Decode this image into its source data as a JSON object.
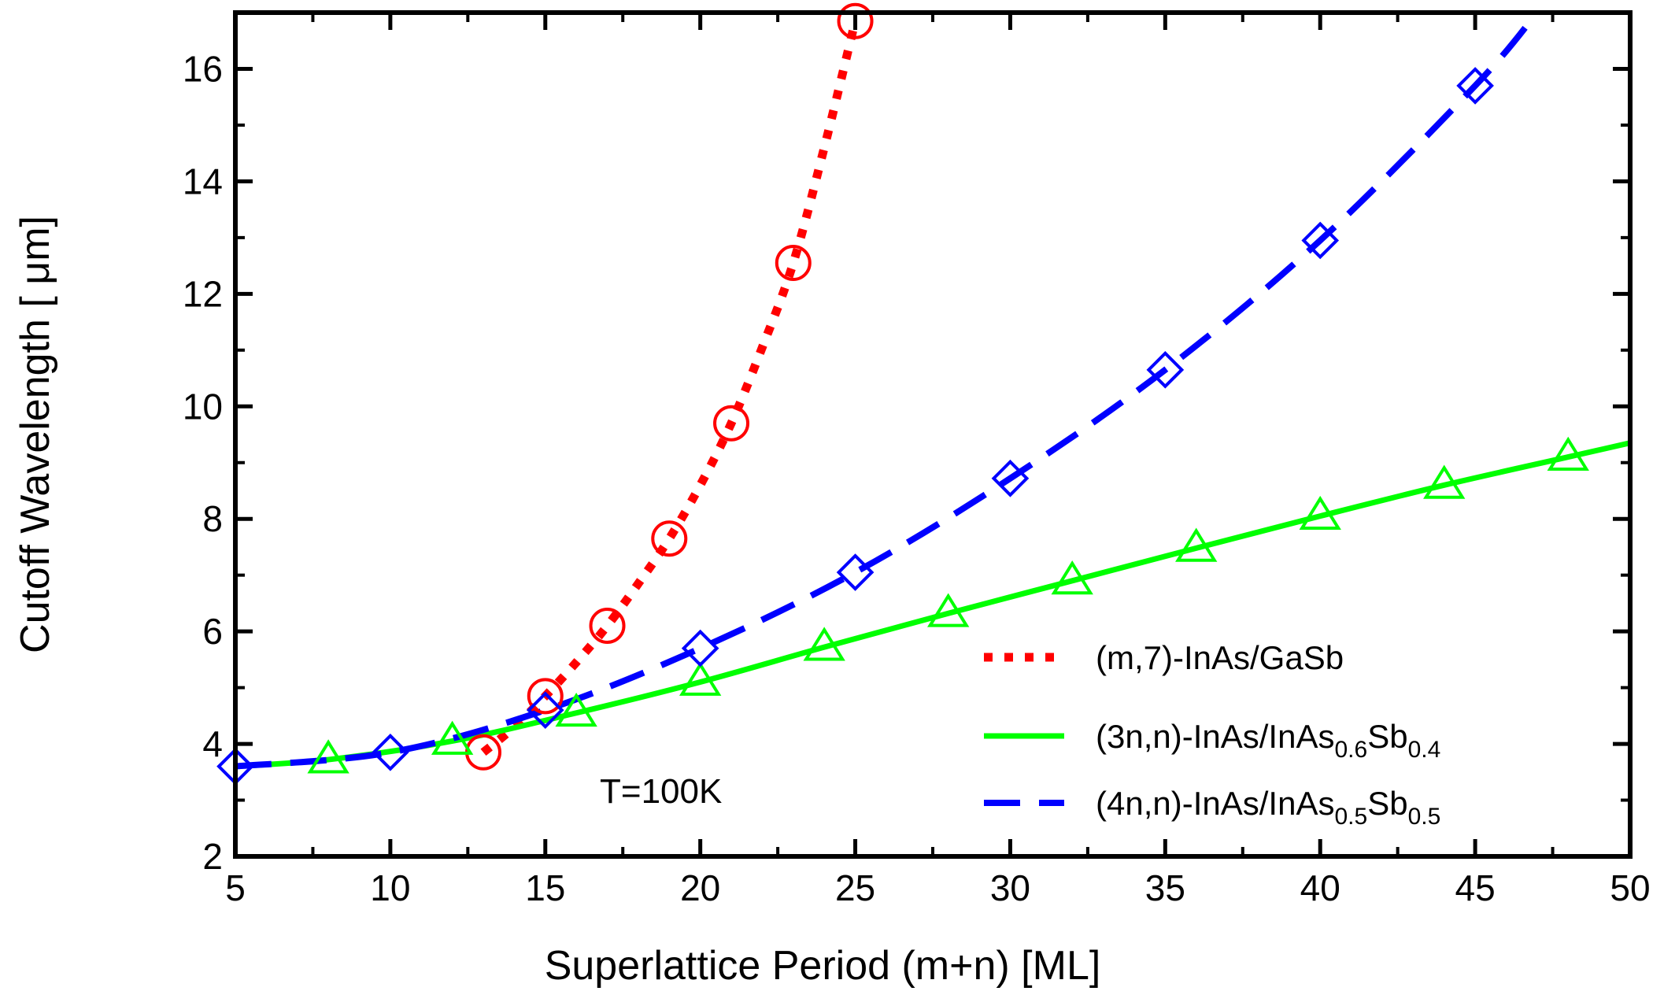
{
  "chart_data": {
    "type": "line",
    "title": "",
    "xlabel": "Superlattice Period (m+n) [ML]",
    "ylabel": "Cutoff Wavelength [ μm]",
    "xlim": [
      5,
      50
    ],
    "ylim": [
      2,
      17
    ],
    "xticks": [
      5,
      10,
      15,
      20,
      25,
      30,
      35,
      40,
      45,
      50
    ],
    "yticks": [
      2,
      4,
      6,
      8,
      10,
      12,
      14,
      16
    ],
    "grid": false,
    "legend_position": "bottom-right",
    "annotation": "T=100K",
    "series": [
      {
        "name": "(m,7)-InAs/GaSb",
        "legend_parts": [
          {
            "text": "(m,7)-InAs/GaSb",
            "sub": false
          }
        ],
        "color": "#ff0000",
        "line_style": "dotted",
        "marker": "circle",
        "curve": [
          [
            13,
            3.85
          ],
          [
            14,
            4.3
          ],
          [
            15,
            4.85
          ],
          [
            16,
            5.45
          ],
          [
            17,
            6.1
          ],
          [
            18,
            6.85
          ],
          [
            19,
            7.65
          ],
          [
            20,
            8.6
          ],
          [
            21,
            9.7
          ],
          [
            22,
            11.05
          ],
          [
            23,
            12.55
          ],
          [
            24,
            14.6
          ],
          [
            25,
            16.85
          ]
        ],
        "points": [
          [
            13,
            3.85
          ],
          [
            15,
            4.85
          ],
          [
            17,
            6.1
          ],
          [
            19,
            7.65
          ],
          [
            21,
            9.7
          ],
          [
            23,
            12.55
          ],
          [
            25,
            16.85
          ]
        ]
      },
      {
        "name": "(3n,n)-InAs/InAs0.6Sb0.4",
        "legend_parts": [
          {
            "text": "(3n,n)-InAs/InAs",
            "sub": false
          },
          {
            "text": "0.6",
            "sub": true
          },
          {
            "text": "Sb",
            "sub": false
          },
          {
            "text": "0.4",
            "sub": true
          }
        ],
        "color": "#00ff00",
        "line_style": "solid",
        "marker": "triangle",
        "curve": [
          [
            5,
            3.6
          ],
          [
            8,
            3.72
          ],
          [
            12,
            4.05
          ],
          [
            16,
            4.55
          ],
          [
            20,
            5.1
          ],
          [
            24,
            5.72
          ],
          [
            28,
            6.32
          ],
          [
            32,
            6.9
          ],
          [
            36,
            7.48
          ],
          [
            40,
            8.05
          ],
          [
            44,
            8.6
          ],
          [
            48,
            9.1
          ],
          [
            50,
            9.35
          ]
        ],
        "points": [
          [
            8,
            3.72
          ],
          [
            12,
            4.05
          ],
          [
            16,
            4.55
          ],
          [
            20,
            5.1
          ],
          [
            24,
            5.72
          ],
          [
            28,
            6.32
          ],
          [
            32,
            6.9
          ],
          [
            36,
            7.48
          ],
          [
            40,
            8.05
          ],
          [
            44,
            8.6
          ],
          [
            48,
            9.1
          ]
        ]
      },
      {
        "name": "(4n,n)-InAs/InAs0.5Sb0.5",
        "legend_parts": [
          {
            "text": "(4n,n)-InAs/InAs",
            "sub": false
          },
          {
            "text": "0.5",
            "sub": true
          },
          {
            "text": "Sb",
            "sub": false
          },
          {
            "text": "0.5",
            "sub": true
          }
        ],
        "color": "#0000ff",
        "line_style": "dashed",
        "marker": "diamond",
        "curve": [
          [
            5,
            3.6
          ],
          [
            10,
            3.85
          ],
          [
            15,
            4.6
          ],
          [
            20,
            5.7
          ],
          [
            25,
            7.05
          ],
          [
            30,
            8.72
          ],
          [
            35,
            10.65
          ],
          [
            40,
            12.95
          ],
          [
            45,
            15.7
          ],
          [
            47,
            17.0
          ]
        ],
        "points": [
          [
            5,
            3.6
          ],
          [
            10,
            3.85
          ],
          [
            15,
            4.6
          ],
          [
            20,
            5.7
          ],
          [
            25,
            7.05
          ],
          [
            30,
            8.72
          ],
          [
            35,
            10.65
          ],
          [
            40,
            12.95
          ],
          [
            45,
            15.7
          ]
        ]
      }
    ]
  }
}
